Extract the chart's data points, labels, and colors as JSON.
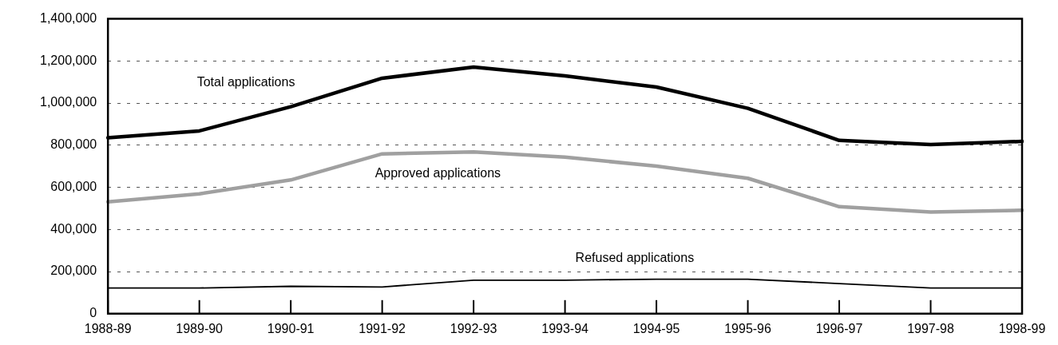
{
  "chart_data": {
    "type": "line",
    "categories": [
      "1988-89",
      "1989-90",
      "1990-91",
      "1991-92",
      "1992-93",
      "1993-94",
      "1994-95",
      "1995-96",
      "1996-97",
      "1997-98",
      "1998-99"
    ],
    "series": [
      {
        "name": "Total applications",
        "color": "#000000",
        "values": [
          835000,
          868000,
          983000,
          1118000,
          1171000,
          1129000,
          1076000,
          975000,
          823000,
          803000,
          818000
        ]
      },
      {
        "name": "Approved applications",
        "color": "#a0a0a0",
        "values": [
          531000,
          569000,
          635000,
          759000,
          768000,
          743000,
          701000,
          643000,
          508000,
          483000,
          491000
        ]
      },
      {
        "name": "Refused applications",
        "color": "#000000",
        "values": [
          122000,
          122000,
          130000,
          127000,
          159000,
          159000,
          164000,
          164000,
          143000,
          122000,
          122000
        ]
      }
    ],
    "ylim": [
      0,
      1400000
    ],
    "yticks": [
      {
        "value": 0,
        "label": "0"
      },
      {
        "value": 200000,
        "label": "200,000"
      },
      {
        "value": 400000,
        "label": "400,000"
      },
      {
        "value": 600000,
        "label": "600,000"
      },
      {
        "value": 800000,
        "label": "800,000"
      },
      {
        "value": 1000000,
        "label": "1,000,000"
      },
      {
        "value": 1200000,
        "label": "1,200,000"
      },
      {
        "value": 1400000,
        "label": "1,400,000"
      }
    ],
    "grid": "y",
    "legend": false,
    "marker": "none",
    "line_style": "solid"
  }
}
